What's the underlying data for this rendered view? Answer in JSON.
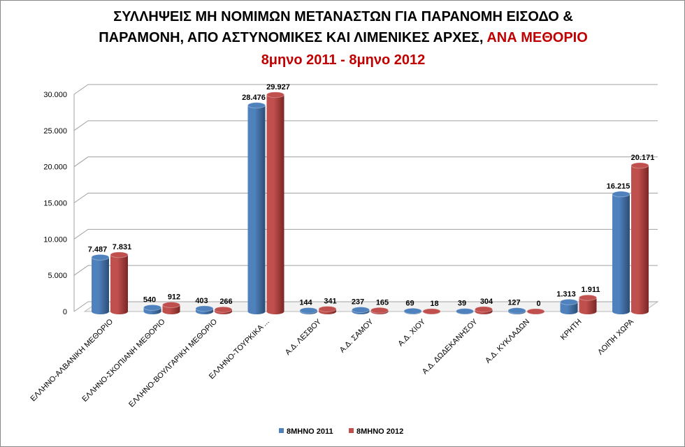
{
  "chart_data": {
    "type": "bar",
    "title_line1": "ΣΥΛΛΗΨΕΙΣ ΜΗ ΝΟΜΙΜΩΝ ΜΕΤΑΝΑΣΤΩΝ ΓΙΑ ΠΑΡΑΝΟΜΗ ΕΙΣΟΔΟ &",
    "title_line2": "ΠΑΡΑΜΟΝΗ, ΑΠΟ ΑΣΤΥΝΟΜΙΚΕΣ ΚΑΙ ΛΙΜΕΝΙΚΕΣ ΑΡΧΕΣ,",
    "title_highlight": "ΑΝΑ ΜΕΘΟΡΙΟ",
    "subtitle": "8μηνο 2011 - 8μηνο 2012",
    "categories": [
      "ΕΛΛΗΝΟ-ΑΛΒΑΝΙΚΗ  ΜΕΘΟΡΙΟ",
      "ΕΛΛΗΝΟ-ΣΚΟΠΙΑΝΗ  ΜΕΘΟΡΙΟ",
      "ΕΛΛΗΝΟ-ΒΟΥΛΓΑΡΙΚΗ  ΜΕΘΟΡΙΟ",
      "ΕΛΛΗΝΟ-ΤΟΥΡΚΙΚΑ ...",
      "Α.Δ. ΛΕΣΒΟΥ",
      "Α.Δ. ΣΑΜΟΥ",
      "Α.Δ. ΧΙΟΥ",
      "Α.Δ. ΔΩΔΕΚΑΝΗΣΟΥ",
      "Α.Δ. ΚΥΚΛΑΔΩΝ",
      "ΚΡΗΤΗ",
      "ΛΟΙΠΗ ΧΩΡΑ"
    ],
    "series": [
      {
        "name": "8ΜΗΝΟ 2011",
        "color": "#4f81bd",
        "values": [
          7487,
          540,
          403,
          28476,
          144,
          237,
          69,
          39,
          127,
          1313,
          16215
        ],
        "labels": [
          "7.487",
          "540",
          "403",
          "28.476",
          "144",
          "237",
          "69",
          "39",
          "127",
          "1.313",
          "16.215"
        ]
      },
      {
        "name": "8ΜΗΝΟ 2012",
        "color": "#c0504d",
        "values": [
          7831,
          912,
          266,
          29927,
          341,
          165,
          18,
          304,
          0,
          1911,
          20171
        ],
        "labels": [
          "7.831",
          "912",
          "266",
          "29.927",
          "341",
          "165",
          "18",
          "304",
          "0",
          "1.911",
          "20.171"
        ]
      }
    ],
    "yticks": [
      0,
      5000,
      10000,
      15000,
      20000,
      25000,
      30000
    ],
    "ytick_labels": [
      "0",
      "5.000",
      "10.000",
      "15.000",
      "20.000",
      "25.000",
      "30.000"
    ],
    "ylim": [
      0,
      30000
    ],
    "grid": true,
    "legend": "bottom"
  }
}
